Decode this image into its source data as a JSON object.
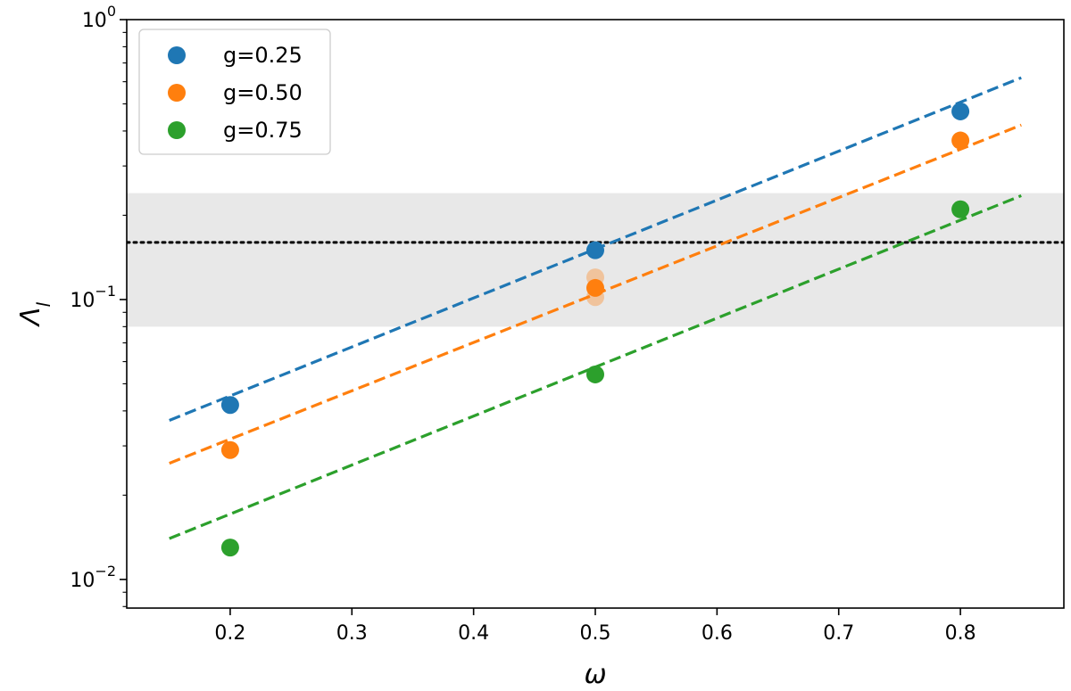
{
  "chart_data": {
    "type": "scatter",
    "xlabel": "ω",
    "ylabel": "Λ",
    "ylabel_subscript": "l",
    "x_axis": {
      "scale": "linear",
      "range": [
        0.115,
        0.885
      ],
      "ticks": [
        0.2,
        0.3,
        0.4,
        0.5,
        0.6,
        0.7,
        0.8
      ],
      "tick_labels": [
        "0.2",
        "0.3",
        "0.4",
        "0.5",
        "0.6",
        "0.7",
        "0.8"
      ]
    },
    "y_axis": {
      "scale": "log",
      "range": [
        0.0079,
        1.0
      ],
      "ticks": [
        0.01,
        0.1,
        1
      ],
      "tick_labels": [
        {
          "base": "10",
          "exp": "−2"
        },
        {
          "base": "10",
          "exp": "−1"
        },
        {
          "base": "10",
          "exp": "0"
        }
      ]
    },
    "grid": false,
    "legend_position": "top-left",
    "shaded_band": {
      "y_from": 0.08,
      "y_to": 0.24,
      "color": "#e8e8e8"
    },
    "reference_line": {
      "y": 0.16,
      "style": "dotted",
      "color": "#000000"
    },
    "series": [
      {
        "name": "g=0.25",
        "color": "#1f77b4",
        "x": [
          0.2,
          0.5,
          0.8
        ],
        "y": [
          0.042,
          0.15,
          0.47
        ],
        "fit": {
          "x": [
            0.15,
            0.85
          ],
          "y": [
            0.037,
            0.62
          ]
        }
      },
      {
        "name": "g=0.50",
        "color": "#ff7f0e",
        "x": [
          0.2,
          0.5,
          0.8
        ],
        "y": [
          0.029,
          0.11,
          0.37
        ],
        "fit": {
          "x": [
            0.15,
            0.85
          ],
          "y": [
            0.026,
            0.42
          ]
        }
      },
      {
        "name": "g=0.75",
        "color": "#2ca02c",
        "x": [
          0.2,
          0.5,
          0.8
        ],
        "y": [
          0.013,
          0.054,
          0.21
        ],
        "fit": {
          "x": [
            0.15,
            0.85
          ],
          "y": [
            0.014,
            0.235
          ]
        }
      }
    ],
    "faint_points": [
      {
        "x": 0.5,
        "y": 0.12,
        "color": "#ff7f0e"
      },
      {
        "x": 0.5,
        "y": 0.102,
        "color": "#ff7f0e"
      }
    ]
  }
}
